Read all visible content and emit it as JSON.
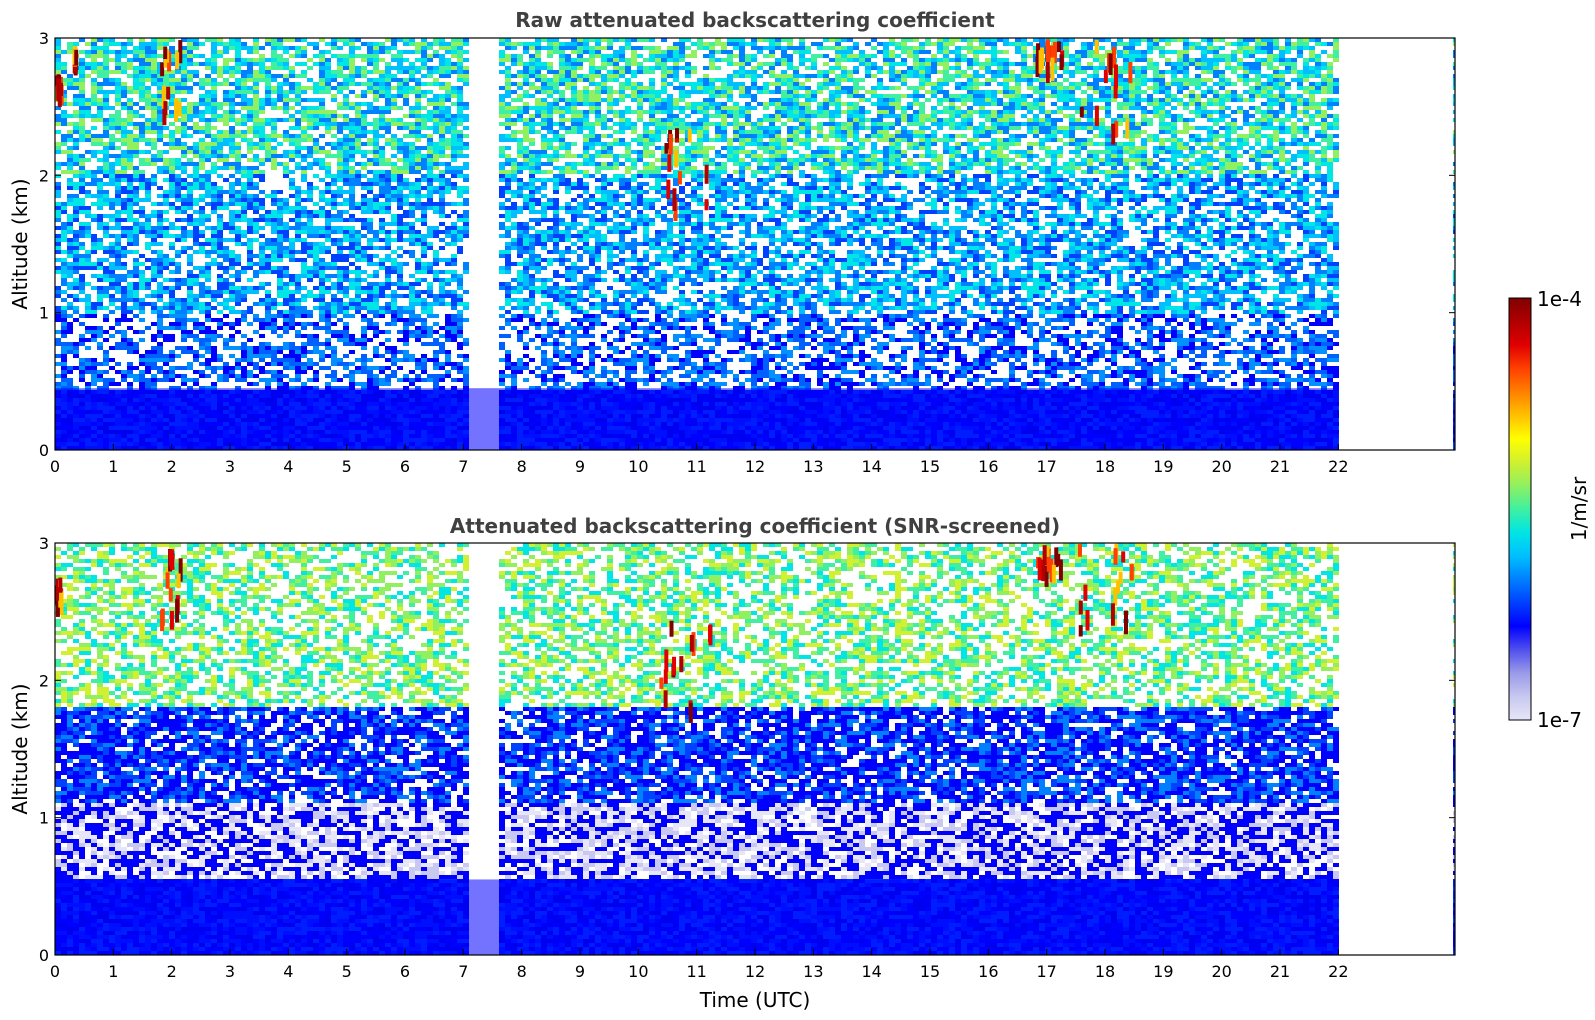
{
  "chart_data": [
    {
      "type": "heatmap",
      "title": "Raw attenuated backscattering coefficient",
      "xlabel": "",
      "ylabel": "Altitude (km)",
      "xlim": [
        0,
        24
      ],
      "ylim": [
        0,
        3
      ],
      "x_ticks": [
        0,
        1,
        2,
        3,
        4,
        5,
        6,
        7,
        8,
        9,
        10,
        11,
        12,
        13,
        14,
        15,
        16,
        17,
        18,
        19,
        20,
        21,
        22
      ],
      "y_ticks": [
        0,
        1,
        2,
        3
      ],
      "data_gaps_hours": [
        [
          7.1,
          7.6
        ],
        [
          22.0,
          24.0
        ]
      ],
      "features": [
        {
          "kind": "near-surface aerosol layer",
          "x": [
            0,
            22
          ],
          "y": [
            0,
            0.45
          ],
          "level": "1e-6"
        },
        {
          "kind": "cloud",
          "x": [
            0.0,
            0.15
          ],
          "y": [
            2.55,
            2.75
          ],
          "level": "1e-4"
        },
        {
          "kind": "cloud",
          "x": [
            0.3,
            0.4
          ],
          "y": [
            2.8,
            2.95
          ],
          "level": "1e-4"
        },
        {
          "kind": "cloud",
          "x": [
            1.8,
            2.2
          ],
          "y": [
            2.4,
            3.0
          ],
          "level": "1e-4"
        },
        {
          "kind": "cloud",
          "x": [
            10.3,
            11.3
          ],
          "y": [
            1.75,
            2.5
          ],
          "level": "1e-4"
        },
        {
          "kind": "cloud",
          "x": [
            16.8,
            17.3
          ],
          "y": [
            2.75,
            3.0
          ],
          "level": "1e-4"
        },
        {
          "kind": "cloud",
          "x": [
            17.5,
            18.5
          ],
          "y": [
            2.3,
            3.0
          ],
          "level": "1e-4"
        }
      ]
    },
    {
      "type": "heatmap",
      "title": "Attenuated backscattering coefficient (SNR-screened)",
      "xlabel": "Time (UTC)",
      "ylabel": "Altitude (km)",
      "xlim": [
        0,
        24
      ],
      "ylim": [
        0,
        3
      ],
      "x_ticks": [
        0,
        1,
        2,
        3,
        4,
        5,
        6,
        7,
        8,
        9,
        10,
        11,
        12,
        13,
        14,
        15,
        16,
        17,
        18,
        19,
        20,
        21,
        22
      ],
      "y_ticks": [
        0,
        1,
        2,
        3
      ],
      "data_gaps_hours": [
        [
          7.1,
          7.6
        ],
        [
          22.0,
          24.0
        ]
      ],
      "features": [
        {
          "kind": "near-surface aerosol layer",
          "x": [
            0,
            22
          ],
          "y": [
            0,
            0.55
          ],
          "level": "1e-6"
        },
        {
          "kind": "screened aerosol",
          "x": [
            0,
            22
          ],
          "y": [
            0.55,
            1.8
          ],
          "level": "1e-6"
        },
        {
          "kind": "cloud",
          "x": [
            0.0,
            0.15
          ],
          "y": [
            2.55,
            2.75
          ],
          "level": "1e-4"
        },
        {
          "kind": "cloud",
          "x": [
            1.8,
            2.2
          ],
          "y": [
            2.4,
            3.0
          ],
          "level": "1e-4"
        },
        {
          "kind": "cloud",
          "x": [
            10.3,
            11.3
          ],
          "y": [
            1.75,
            2.5
          ],
          "level": "1e-4"
        },
        {
          "kind": "cloud",
          "x": [
            16.8,
            17.3
          ],
          "y": [
            2.75,
            3.0
          ],
          "level": "1e-4"
        },
        {
          "kind": "cloud",
          "x": [
            17.5,
            18.5
          ],
          "y": [
            2.3,
            3.0
          ],
          "level": "1e-4"
        }
      ]
    }
  ],
  "colorbar": {
    "label": "1/m/sr",
    "max_label": "1e-4",
    "min_label": "1e-7",
    "colors": [
      "#e6e6f7",
      "#c8c8f0",
      "#9a9ae8",
      "#5050ee",
      "#0000ff",
      "#0040ff",
      "#0080ff",
      "#00bfff",
      "#00e5e5",
      "#40f0a0",
      "#90f060",
      "#d0f030",
      "#ffff00",
      "#ffc000",
      "#ff8000",
      "#ff4000",
      "#e00000",
      "#b00000",
      "#800000"
    ]
  }
}
